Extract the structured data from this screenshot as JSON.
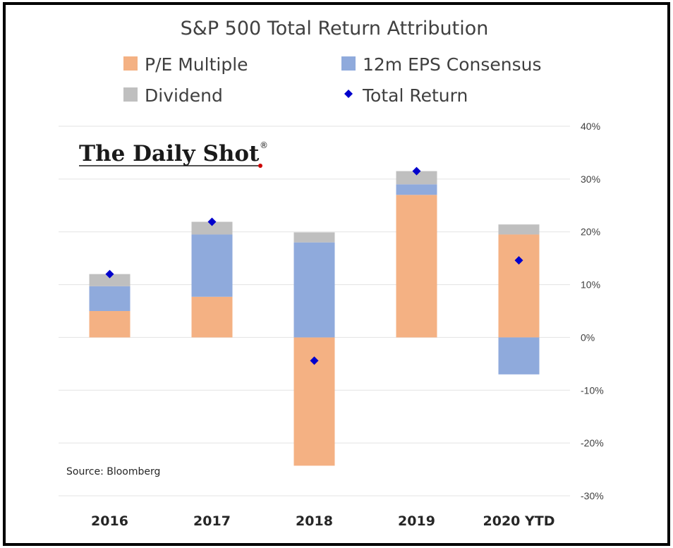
{
  "brand": {
    "name": "The Daily Shot",
    "mark": "®"
  },
  "source": "Source: Bloomberg",
  "chart_data": {
    "type": "bar",
    "stacked": true,
    "title": "S&P 500 Total Return Attribution",
    "categories": [
      "2016",
      "2017",
      "2018",
      "2019",
      "2020 YTD"
    ],
    "series": [
      {
        "name": "P/E Multiple",
        "color": "#f4b183",
        "values": [
          5,
          7.7,
          -24.3,
          27,
          19.5
        ]
      },
      {
        "name": "12m EPS Consensus",
        "color": "#8faadc",
        "values": [
          4.7,
          11.8,
          18,
          2,
          -7
        ]
      },
      {
        "name": "Dividend",
        "color": "#bfbfbf",
        "values": [
          2.3,
          2.4,
          1.9,
          2.5,
          1.9
        ]
      }
    ],
    "total_return": {
      "name": "Total Return",
      "color": "#0000cc",
      "values": [
        12,
        21.9,
        -4.4,
        31.5,
        14.6
      ]
    },
    "y_ticks": [
      "-30%",
      "-20%",
      "-10%",
      "0%",
      "10%",
      "20%",
      "30%",
      "40%"
    ],
    "ylim": [
      -30,
      40
    ],
    "y_axis_side": "right",
    "grid": true,
    "legend_position": "top"
  }
}
